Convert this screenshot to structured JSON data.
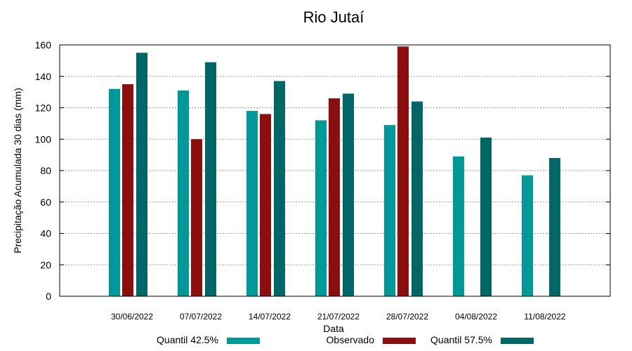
{
  "chart_data": {
    "type": "bar",
    "title": "Rio Jutaí",
    "xlabel": "Data",
    "ylabel": "Precipitação Acumulada 30 dias (mm)",
    "ylim": [
      0,
      160
    ],
    "yticks": [
      0,
      20,
      40,
      60,
      80,
      100,
      120,
      140,
      160
    ],
    "grid": true,
    "legend_position": "bottom",
    "categories": [
      "30/06/2022",
      "07/07/2022",
      "14/07/2022",
      "21/07/2022",
      "28/07/2022",
      "04/08/2022",
      "11/08/2022"
    ],
    "series": [
      {
        "name": "Quantil 42.5%",
        "color": "#009999",
        "values": [
          132,
          131,
          118,
          112,
          109,
          89,
          77
        ]
      },
      {
        "name": "Observado",
        "color": "#8B0F0F",
        "values": [
          135,
          100,
          116,
          126,
          159,
          null,
          null
        ]
      },
      {
        "name": "Quantil 57.5%",
        "color": "#006666",
        "values": [
          155,
          149,
          137,
          129,
          124,
          101,
          88
        ]
      }
    ]
  }
}
